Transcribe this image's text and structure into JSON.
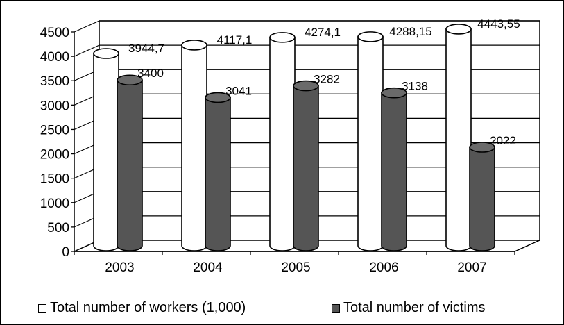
{
  "chart_data": {
    "type": "bar",
    "categories": [
      "2003",
      "2004",
      "2005",
      "2006",
      "2007"
    ],
    "series": [
      {
        "name": "Total number of workers (1,000)",
        "values": [
          3944.7,
          4117.1,
          4274.1,
          4288.15,
          4443.55
        ],
        "labels": [
          "3944,7",
          "4117,1",
          "4274,1",
          "4288,15",
          "4443,55"
        ],
        "color": "#ffffff"
      },
      {
        "name": "Total number of victims",
        "values": [
          3400,
          3041,
          3282,
          3138,
          2022
        ],
        "labels": [
          "3400",
          "3041",
          "3282",
          "3138",
          "2022"
        ],
        "color": "#555555"
      }
    ],
    "ylim": [
      0,
      4500
    ],
    "yticks": [
      "0",
      "500",
      "1000",
      "1500",
      "2000",
      "2500",
      "3000",
      "3500",
      "4000",
      "4500"
    ],
    "grid": true,
    "legend_position": "bottom"
  }
}
